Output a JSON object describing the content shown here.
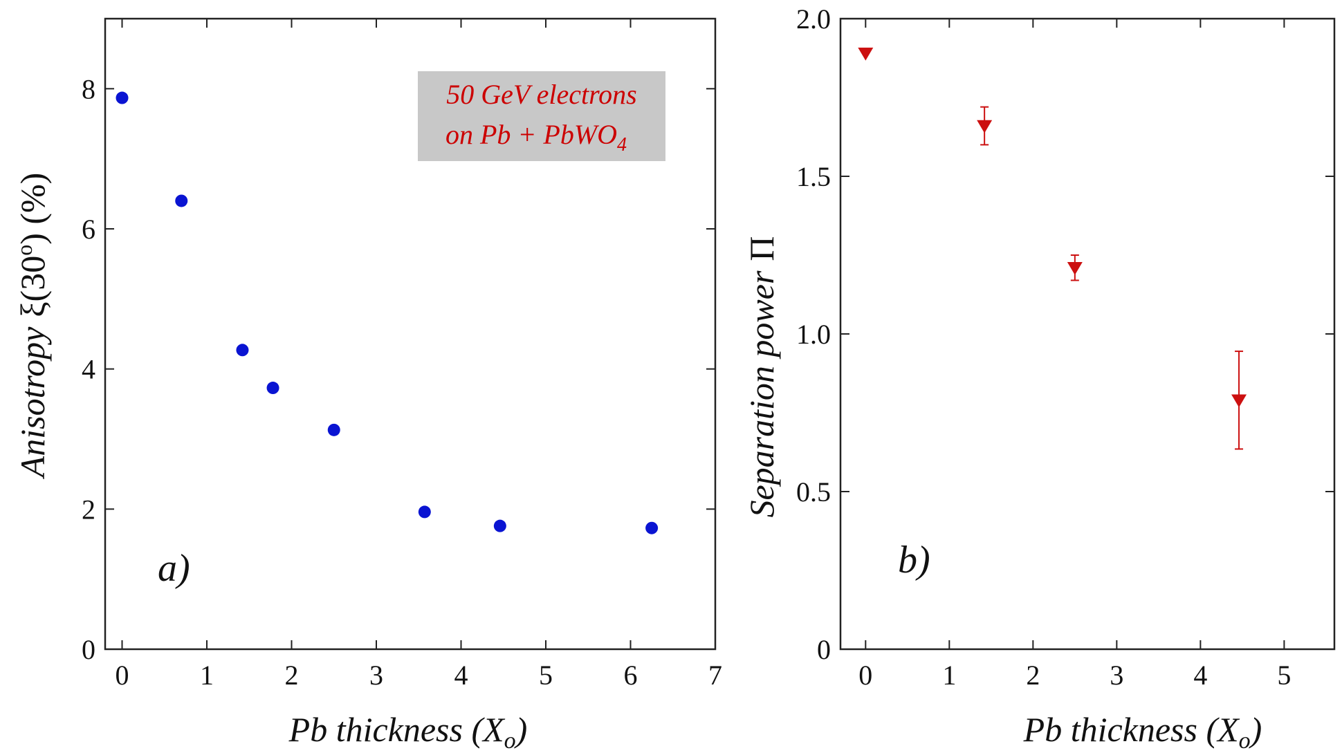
{
  "colors": {
    "series_a": "#0a14d2",
    "series_b": "#cc1010",
    "annotation_text": "#cc0000",
    "annotation_box": "#c8c8c8"
  },
  "chart_data": [
    {
      "type": "scatter",
      "panel_label": "a)",
      "xlabel": "Pb thickness (X",
      "xlabel_sub": "o",
      "xlabel_end": ")",
      "ylabel": "Anisotropy",
      "ylabel_symbol": "ξ(30",
      "ylabel_sup": "o",
      "ylabel_end": ")  (%)",
      "xlim": [
        -0.2,
        7.0
      ],
      "ylim": [
        0,
        9.0
      ],
      "xticks": [
        0,
        1,
        2,
        3,
        4,
        5,
        6,
        7
      ],
      "yticks": [
        0,
        2,
        4,
        6,
        8
      ],
      "annotation": {
        "line1": "50 GeV electrons",
        "line2": "on Pb + PbWO",
        "line2_sub": "4"
      },
      "series": [
        {
          "marker": "circle",
          "x": [
            0,
            0.7,
            1.42,
            1.78,
            2.5,
            3.57,
            4.46,
            6.25
          ],
          "y": [
            7.87,
            6.4,
            4.27,
            3.73,
            3.13,
            1.96,
            1.76,
            1.73
          ]
        }
      ]
    },
    {
      "type": "scatter",
      "panel_label": "b)",
      "xlabel": "Pb thickness (X",
      "xlabel_sub": "o",
      "xlabel_end": ")",
      "ylabel": "Separation power",
      "ylabel_symbol": "Π",
      "xlim": [
        -0.3,
        5.6
      ],
      "ylim": [
        0,
        2.0
      ],
      "xticks": [
        0,
        1,
        2,
        3,
        4,
        5
      ],
      "yticks": [
        0,
        0.5,
        1.0,
        1.5,
        2.0
      ],
      "ytick_labels": [
        "0",
        "0.5",
        "1.0",
        "1.5",
        "2.0"
      ],
      "series": [
        {
          "marker": "triangle-down",
          "x": [
            0,
            1.42,
            2.5,
            4.46
          ],
          "y": [
            1.89,
            1.66,
            1.21,
            0.79
          ],
          "yerr": [
            0.0,
            0.06,
            0.04,
            0.155
          ]
        }
      ]
    }
  ]
}
